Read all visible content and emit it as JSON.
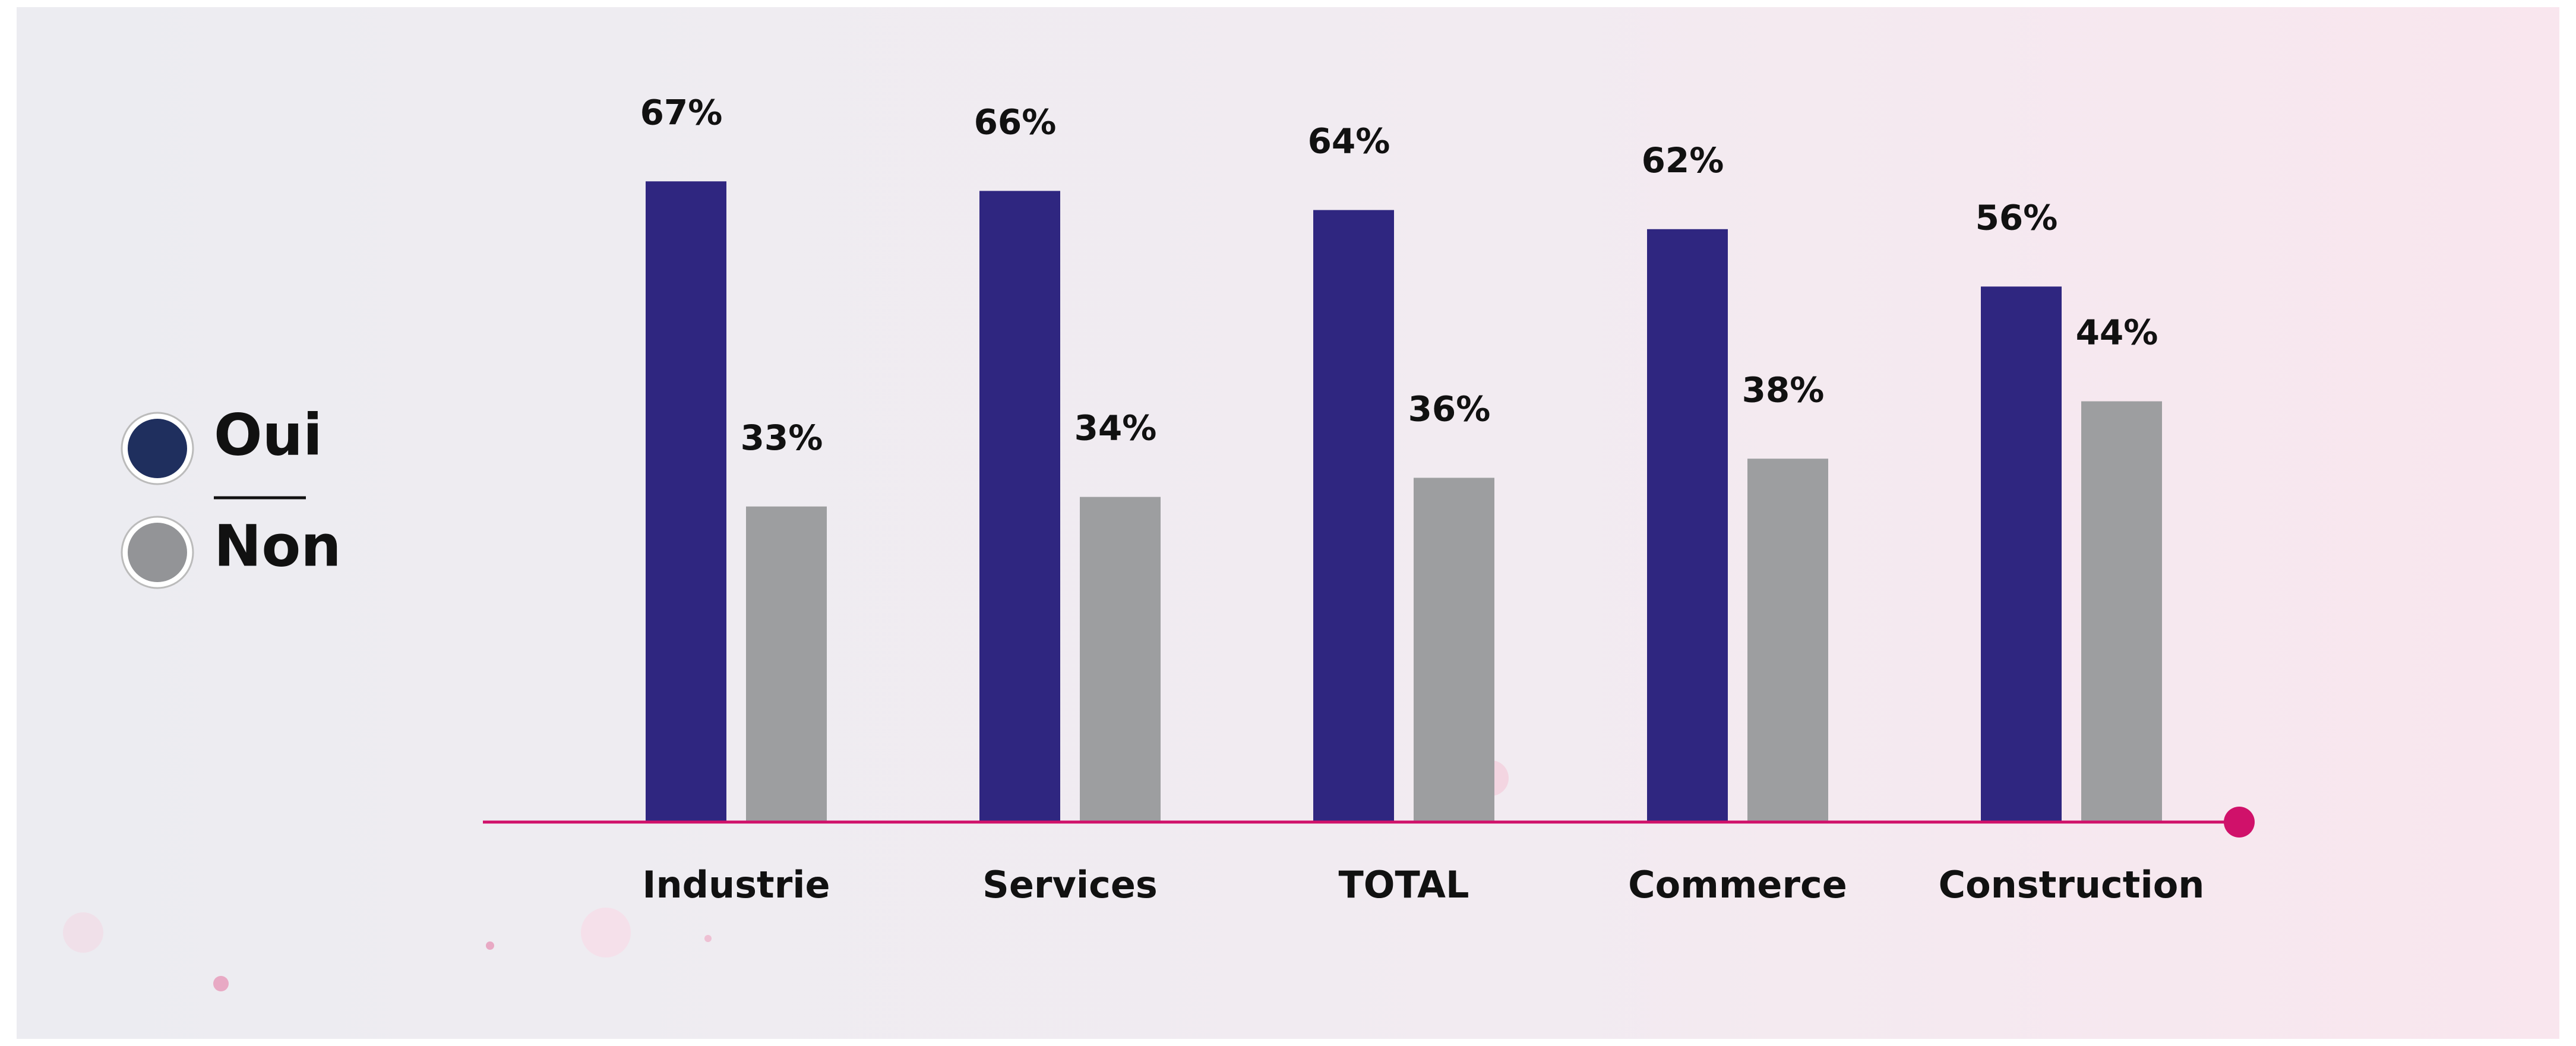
{
  "chart_data": {
    "type": "bar",
    "categories": [
      "Industrie",
      "Services",
      "TOTAL",
      "Commerce",
      "Construction"
    ],
    "series": [
      {
        "name": "Oui",
        "color": "#2f2680",
        "legend_color": "#1f2f5e",
        "values": [
          67,
          66,
          64,
          62,
          56
        ],
        "value_labels": [
          "67%",
          "66%",
          "64%",
          "62%",
          "56%"
        ]
      },
      {
        "name": "Non",
        "color": "#9d9ea0",
        "legend_color": "#939497",
        "values": [
          33,
          34,
          36,
          38,
          44
        ],
        "value_labels": [
          "33%",
          "34%",
          "36%",
          "38%",
          "44%"
        ]
      }
    ],
    "axis_color": "#d0116a"
  }
}
